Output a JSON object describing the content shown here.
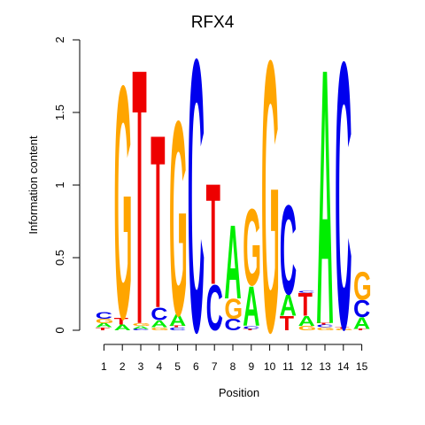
{
  "chart_data": {
    "type": "sequence-logo",
    "title": "RFX4",
    "xlabel": "Position",
    "ylabel": "Information content",
    "ylim": [
      0,
      2
    ],
    "yticks": [
      0,
      0.5,
      1,
      1.5,
      2
    ],
    "ytick_labels": [
      "0",
      "0.5",
      "1",
      "1.5",
      "2"
    ],
    "positions": [
      "1",
      "2",
      "3",
      "4",
      "5",
      "6",
      "7",
      "8",
      "9",
      "10",
      "11",
      "12",
      "13",
      "14",
      "15"
    ],
    "colors": {
      "A": "#00ee00",
      "C": "#0000ee",
      "G": "#ffa500",
      "T": "#ee0000"
    },
    "stacks": [
      [
        {
          "l": "T",
          "h": 0.02
        },
        {
          "l": "A",
          "h": 0.03
        },
        {
          "l": "G",
          "h": 0.03
        },
        {
          "l": "C",
          "h": 0.05
        }
      ],
      [
        {
          "l": "A",
          "h": 0.04
        },
        {
          "l": "T",
          "h": 0.05
        },
        {
          "l": "G",
          "h": 1.64
        }
      ],
      [
        {
          "l": "C",
          "h": 0.01
        },
        {
          "l": "A",
          "h": 0.02
        },
        {
          "l": "G",
          "h": 0.02
        },
        {
          "l": "T",
          "h": 1.8
        }
      ],
      [
        {
          "l": "G",
          "h": 0.02
        },
        {
          "l": "A",
          "h": 0.05
        },
        {
          "l": "C",
          "h": 0.09
        },
        {
          "l": "T",
          "h": 1.22
        }
      ],
      [
        {
          "l": "C",
          "h": 0.02
        },
        {
          "l": "T",
          "h": 0.01
        },
        {
          "l": "A",
          "h": 0.08
        },
        {
          "l": "G",
          "h": 1.37
        }
      ],
      [
        {
          "l": "C",
          "h": 1.92
        }
      ],
      [
        {
          "l": "C",
          "h": 0.32
        },
        {
          "l": "T",
          "h": 0.71
        }
      ],
      [
        {
          "l": "C",
          "h": 0.08
        },
        {
          "l": "G",
          "h": 0.14
        },
        {
          "l": "A",
          "h": 0.52
        }
      ],
      [
        {
          "l": "T",
          "h": 0.01
        },
        {
          "l": "C",
          "h": 0.02
        },
        {
          "l": "A",
          "h": 0.28
        },
        {
          "l": "G",
          "h": 0.54
        }
      ],
      [
        {
          "l": "G",
          "h": 1.91
        }
      ],
      [
        {
          "l": "T",
          "h": 0.1
        },
        {
          "l": "A",
          "h": 0.15
        },
        {
          "l": "C",
          "h": 0.63
        }
      ],
      [
        {
          "l": "G",
          "h": 0.03
        },
        {
          "l": "A",
          "h": 0.07
        },
        {
          "l": "T",
          "h": 0.16
        },
        {
          "l": "C",
          "h": 0.01
        }
      ],
      [
        {
          "l": "G",
          "h": 0.02
        },
        {
          "l": "C",
          "h": 0.02
        },
        {
          "l": "T",
          "h": 0.01
        },
        {
          "l": "A",
          "h": 1.8
        }
      ],
      [
        {
          "l": "G",
          "h": 0.01
        },
        {
          "l": "T",
          "h": 0.01
        },
        {
          "l": "C",
          "h": 1.88
        }
      ],
      [
        {
          "l": "T",
          "h": 0.01
        },
        {
          "l": "A",
          "h": 0.08
        },
        {
          "l": "C",
          "h": 0.12
        },
        {
          "l": "G",
          "h": 0.2
        }
      ]
    ]
  }
}
